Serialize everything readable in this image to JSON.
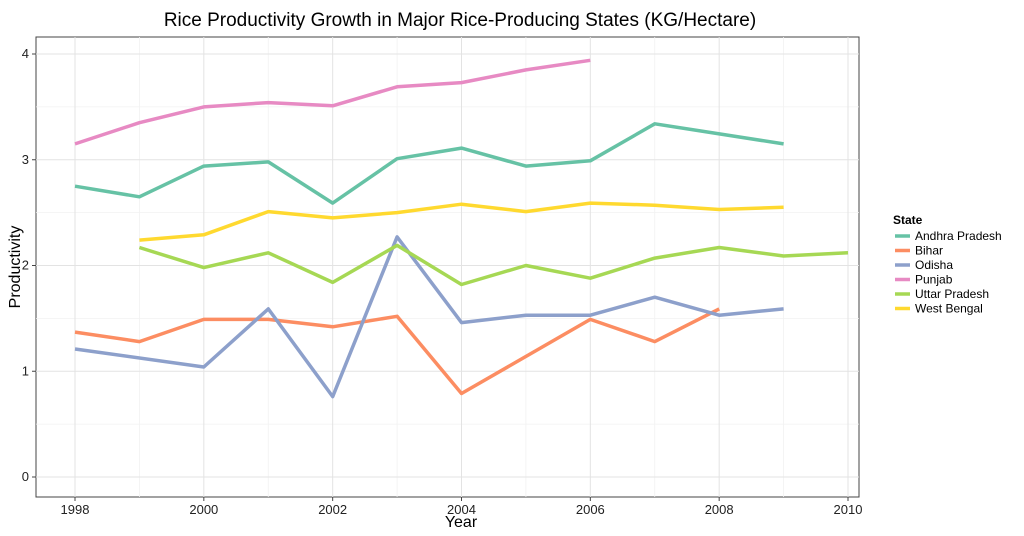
{
  "chart_data": {
    "type": "line",
    "title": "Rice Productivity Growth in Major Rice-Producing States (KG/Hectare)",
    "xlabel": "Year",
    "ylabel": "Productivity",
    "xlim": [
      1998,
      2010
    ],
    "ylim": [
      0,
      4.2
    ],
    "x_ticks": [
      1998,
      2000,
      2002,
      2004,
      2006,
      2008,
      2010
    ],
    "y_ticks": [
      0,
      1,
      2,
      3,
      4
    ],
    "grid": true,
    "legend": {
      "title": "State",
      "position": "right"
    },
    "series": [
      {
        "name": "Andhra Pradesh",
        "color": "#66c2a5",
        "x": [
          1998,
          1999,
          2000,
          2001,
          2002,
          2003,
          2004,
          2005,
          2006,
          2007,
          2009
        ],
        "y": [
          2.75,
          2.65,
          2.94,
          2.98,
          2.59,
          3.01,
          3.11,
          2.94,
          2.99,
          3.34,
          3.15
        ]
      },
      {
        "name": "Bihar",
        "color": "#fc8d62",
        "x": [
          1998,
          1999,
          2000,
          2001,
          2002,
          2003,
          2004,
          2006,
          2007,
          2008
        ],
        "y": [
          1.37,
          1.28,
          1.49,
          1.49,
          1.42,
          1.52,
          0.79,
          1.49,
          1.28,
          1.59
        ]
      },
      {
        "name": "Odisha",
        "color": "#8da0cb",
        "x": [
          1998,
          2000,
          2001,
          2002,
          2003,
          2004,
          2005,
          2006,
          2007,
          2008,
          2009
        ],
        "y": [
          1.21,
          1.04,
          1.59,
          0.76,
          2.27,
          1.46,
          1.53,
          1.53,
          1.7,
          1.53,
          1.59
        ]
      },
      {
        "name": "Punjab",
        "color": "#e78ac3",
        "x": [
          1998,
          1999,
          2000,
          2001,
          2002,
          2003,
          2004,
          2005,
          2006
        ],
        "y": [
          3.15,
          3.35,
          3.5,
          3.54,
          3.51,
          3.69,
          3.73,
          3.85,
          3.94
        ]
      },
      {
        "name": "Uttar Pradesh",
        "color": "#a6d854",
        "x": [
          1999,
          2000,
          2001,
          2002,
          2003,
          2004,
          2005,
          2006,
          2007,
          2008,
          2009,
          2010
        ],
        "y": [
          2.17,
          1.98,
          2.12,
          1.84,
          2.19,
          1.82,
          2.0,
          1.88,
          2.07,
          2.17,
          2.09,
          2.12
        ]
      },
      {
        "name": "West Bengal",
        "color": "#ffd92f",
        "x": [
          1999,
          2000,
          2001,
          2002,
          2003,
          2004,
          2005,
          2006,
          2007,
          2008,
          2009
        ],
        "y": [
          2.24,
          2.29,
          2.51,
          2.45,
          2.5,
          2.58,
          2.51,
          2.59,
          2.57,
          2.53,
          2.55
        ]
      }
    ]
  }
}
